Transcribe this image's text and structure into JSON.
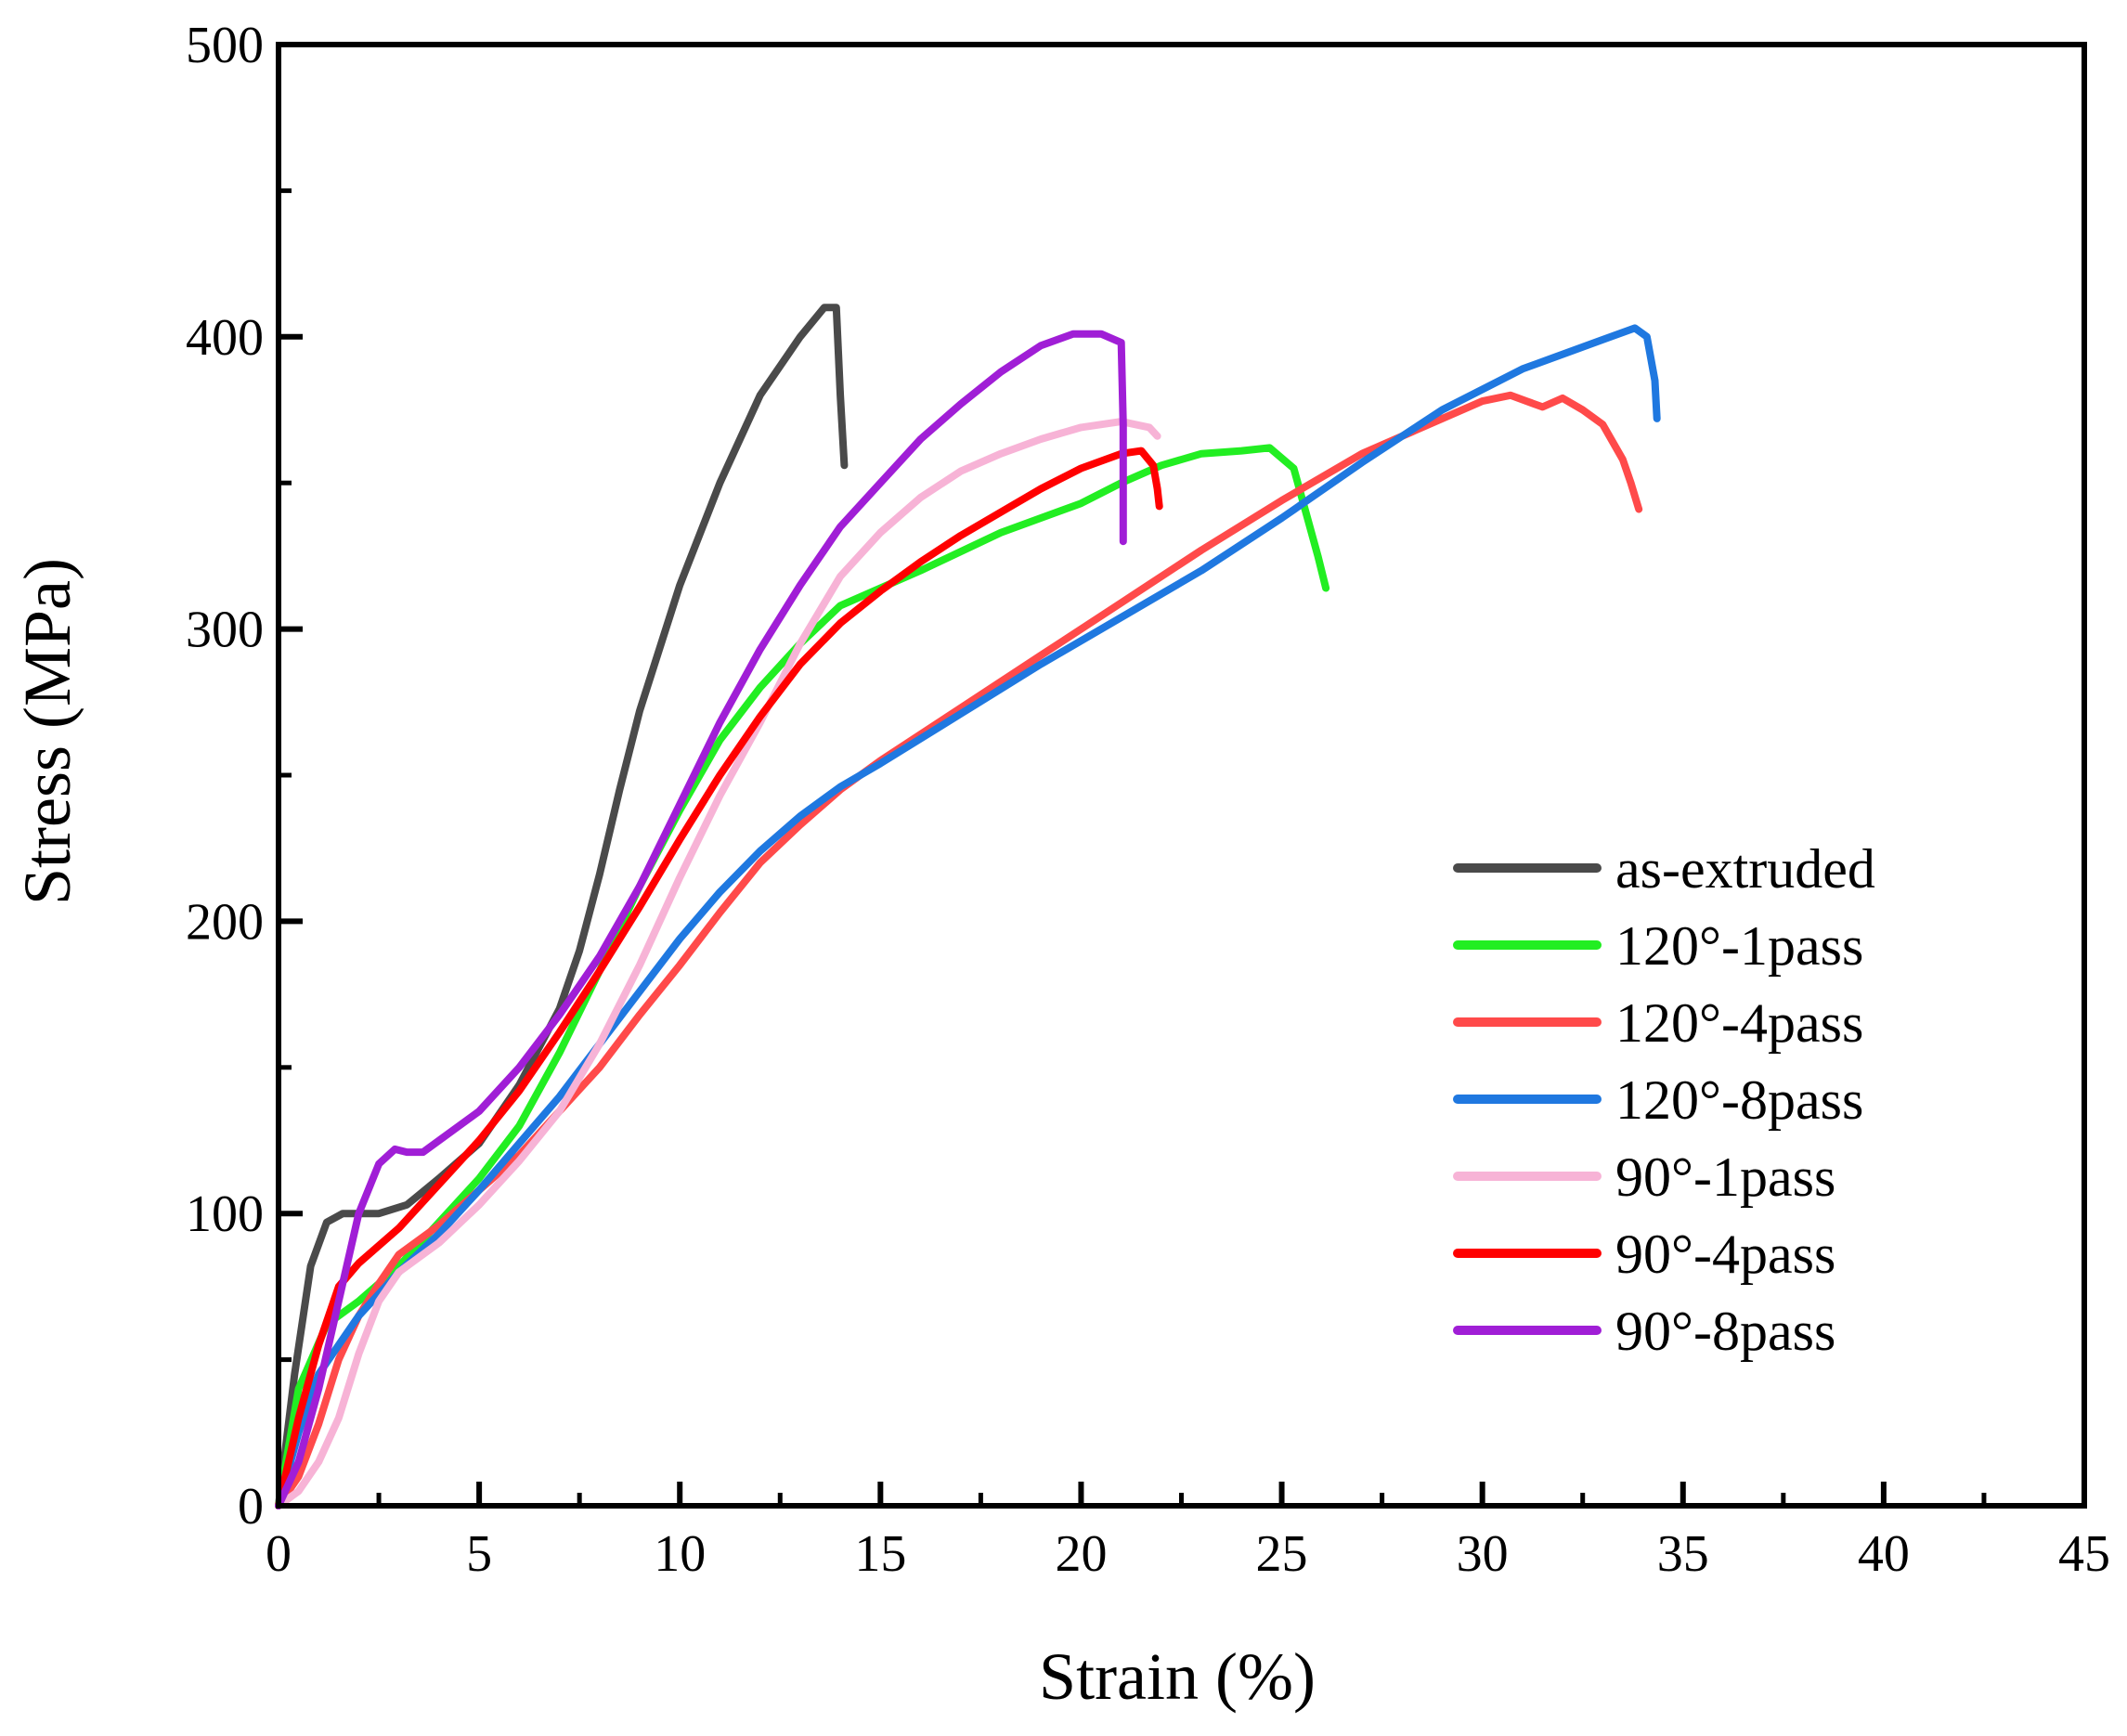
{
  "chart_data": {
    "type": "line",
    "title": "",
    "xlabel": "Strain (%)",
    "ylabel": "Stress (MPa)",
    "xlim": [
      0,
      45
    ],
    "ylim": [
      0,
      500
    ],
    "xticks": [
      0,
      5,
      10,
      15,
      20,
      25,
      30,
      35,
      40,
      45
    ],
    "yticks": [
      0,
      100,
      200,
      300,
      400,
      500
    ],
    "grid": false,
    "legend_position": "right",
    "series": [
      {
        "name": "as-extruded",
        "color": "#4a4a4a",
        "points": [
          [
            0,
            0
          ],
          [
            0.4,
            45
          ],
          [
            0.8,
            82
          ],
          [
            1.2,
            97
          ],
          [
            1.6,
            100
          ],
          [
            2.5,
            100
          ],
          [
            3.2,
            103
          ],
          [
            4,
            112
          ],
          [
            5,
            124
          ],
          [
            6,
            144
          ],
          [
            7,
            170
          ],
          [
            7.5,
            190
          ],
          [
            8,
            216
          ],
          [
            8.5,
            245
          ],
          [
            9,
            272
          ],
          [
            10,
            315
          ],
          [
            11,
            350
          ],
          [
            12,
            380
          ],
          [
            13,
            400
          ],
          [
            13.6,
            410
          ],
          [
            13.9,
            410
          ],
          [
            14,
            380
          ],
          [
            14.1,
            356
          ]
        ]
      },
      {
        "name": "120°-1pass",
        "color": "#22ee22",
        "points": [
          [
            0,
            0
          ],
          [
            0.5,
            40
          ],
          [
            1.2,
            62
          ],
          [
            2,
            70
          ],
          [
            3,
            82
          ],
          [
            4,
            97
          ],
          [
            5,
            112
          ],
          [
            6,
            130
          ],
          [
            7,
            155
          ],
          [
            8,
            183
          ],
          [
            9,
            212
          ],
          [
            10,
            238
          ],
          [
            11,
            262
          ],
          [
            12,
            280
          ],
          [
            13,
            295
          ],
          [
            14,
            308
          ],
          [
            16,
            320
          ],
          [
            18,
            333
          ],
          [
            20,
            343
          ],
          [
            21,
            350
          ],
          [
            22,
            356
          ],
          [
            23,
            360
          ],
          [
            24,
            361
          ],
          [
            24.7,
            362
          ],
          [
            25.3,
            355
          ],
          [
            25.6,
            340
          ],
          [
            25.9,
            325
          ],
          [
            26.1,
            314
          ]
        ]
      },
      {
        "name": "120°-4pass",
        "color": "#ff4a4a",
        "points": [
          [
            0,
            0
          ],
          [
            0.5,
            10
          ],
          [
            1,
            28
          ],
          [
            1.5,
            50
          ],
          [
            2,
            65
          ],
          [
            2.5,
            76
          ],
          [
            3,
            86
          ],
          [
            4,
            96
          ],
          [
            5,
            108
          ],
          [
            6,
            120
          ],
          [
            7,
            135
          ],
          [
            8,
            150
          ],
          [
            9,
            168
          ],
          [
            10,
            185
          ],
          [
            11,
            203
          ],
          [
            12,
            220
          ],
          [
            13,
            233
          ],
          [
            14,
            245
          ],
          [
            15,
            255
          ],
          [
            17,
            273
          ],
          [
            19,
            291
          ],
          [
            21,
            309
          ],
          [
            23,
            327
          ],
          [
            25,
            344
          ],
          [
            27,
            360
          ],
          [
            29,
            372
          ],
          [
            30,
            378
          ],
          [
            30.7,
            380
          ],
          [
            31.1,
            378
          ],
          [
            31.5,
            376
          ],
          [
            32,
            379
          ],
          [
            32.5,
            375
          ],
          [
            33,
            370
          ],
          [
            33.5,
            358
          ],
          [
            33.7,
            350
          ],
          [
            33.9,
            341
          ]
        ]
      },
      {
        "name": "120°-8pass",
        "color": "#1f78e0",
        "points": [
          [
            0,
            0
          ],
          [
            0.5,
            25
          ],
          [
            1,
            45
          ],
          [
            2,
            65
          ],
          [
            3,
            80
          ],
          [
            4,
            93
          ],
          [
            5,
            108
          ],
          [
            6,
            124
          ],
          [
            7,
            140
          ],
          [
            8,
            158
          ],
          [
            9,
            176
          ],
          [
            10,
            194
          ],
          [
            11,
            210
          ],
          [
            12,
            224
          ],
          [
            13,
            236
          ],
          [
            14,
            246
          ],
          [
            15,
            254
          ],
          [
            17,
            271
          ],
          [
            19,
            288
          ],
          [
            21,
            304
          ],
          [
            23,
            320
          ],
          [
            25,
            338
          ],
          [
            27,
            357
          ],
          [
            29,
            375
          ],
          [
            31,
            389
          ],
          [
            33,
            399
          ],
          [
            33.8,
            403
          ],
          [
            34.1,
            400
          ],
          [
            34.3,
            385
          ],
          [
            34.35,
            372
          ]
        ]
      },
      {
        "name": "90°-1pass",
        "color": "#f7b3d6",
        "points": [
          [
            0,
            0
          ],
          [
            0.5,
            5
          ],
          [
            1,
            15
          ],
          [
            1.5,
            30
          ],
          [
            2,
            52
          ],
          [
            2.5,
            70
          ],
          [
            3,
            80
          ],
          [
            4,
            90
          ],
          [
            5,
            103
          ],
          [
            6,
            118
          ],
          [
            7,
            135
          ],
          [
            8,
            158
          ],
          [
            9,
            185
          ],
          [
            10,
            215
          ],
          [
            11,
            243
          ],
          [
            12,
            268
          ],
          [
            13,
            295
          ],
          [
            14,
            318
          ],
          [
            15,
            333
          ],
          [
            16,
            345
          ],
          [
            17,
            354
          ],
          [
            18,
            360
          ],
          [
            19,
            365
          ],
          [
            20,
            369
          ],
          [
            21,
            371
          ],
          [
            21.7,
            369
          ],
          [
            21.9,
            366
          ]
        ]
      },
      {
        "name": "90°-4pass",
        "color": "#ff0000",
        "points": [
          [
            0,
            0
          ],
          [
            0.5,
            30
          ],
          [
            1,
            55
          ],
          [
            1.5,
            75
          ],
          [
            2,
            83
          ],
          [
            3,
            95
          ],
          [
            4,
            110
          ],
          [
            5,
            125
          ],
          [
            6,
            142
          ],
          [
            7,
            162
          ],
          [
            8,
            183
          ],
          [
            9,
            205
          ],
          [
            10,
            228
          ],
          [
            11,
            250
          ],
          [
            12,
            270
          ],
          [
            13,
            288
          ],
          [
            14,
            302
          ],
          [
            15,
            313
          ],
          [
            16,
            323
          ],
          [
            17,
            332
          ],
          [
            18,
            340
          ],
          [
            19,
            348
          ],
          [
            20,
            355
          ],
          [
            21,
            360
          ],
          [
            21.5,
            361
          ],
          [
            21.8,
            356
          ],
          [
            21.9,
            348
          ],
          [
            21.95,
            342
          ]
        ]
      },
      {
        "name": "90°-8pass",
        "color": "#a01ed6",
        "points": [
          [
            0,
            0
          ],
          [
            0.5,
            15
          ],
          [
            1,
            40
          ],
          [
            1.5,
            70
          ],
          [
            2,
            100
          ],
          [
            2.5,
            117
          ],
          [
            2.9,
            122
          ],
          [
            3.2,
            121
          ],
          [
            3.6,
            121
          ],
          [
            4,
            125
          ],
          [
            5,
            135
          ],
          [
            6,
            150
          ],
          [
            7,
            168
          ],
          [
            8,
            188
          ],
          [
            9,
            212
          ],
          [
            10,
            240
          ],
          [
            11,
            268
          ],
          [
            12,
            293
          ],
          [
            13,
            315
          ],
          [
            14,
            335
          ],
          [
            15,
            350
          ],
          [
            16,
            365
          ],
          [
            17,
            377
          ],
          [
            18,
            388
          ],
          [
            19,
            397
          ],
          [
            19.8,
            401
          ],
          [
            20.5,
            401
          ],
          [
            21,
            398
          ],
          [
            21.05,
            370
          ],
          [
            21.05,
            330
          ]
        ]
      }
    ]
  }
}
